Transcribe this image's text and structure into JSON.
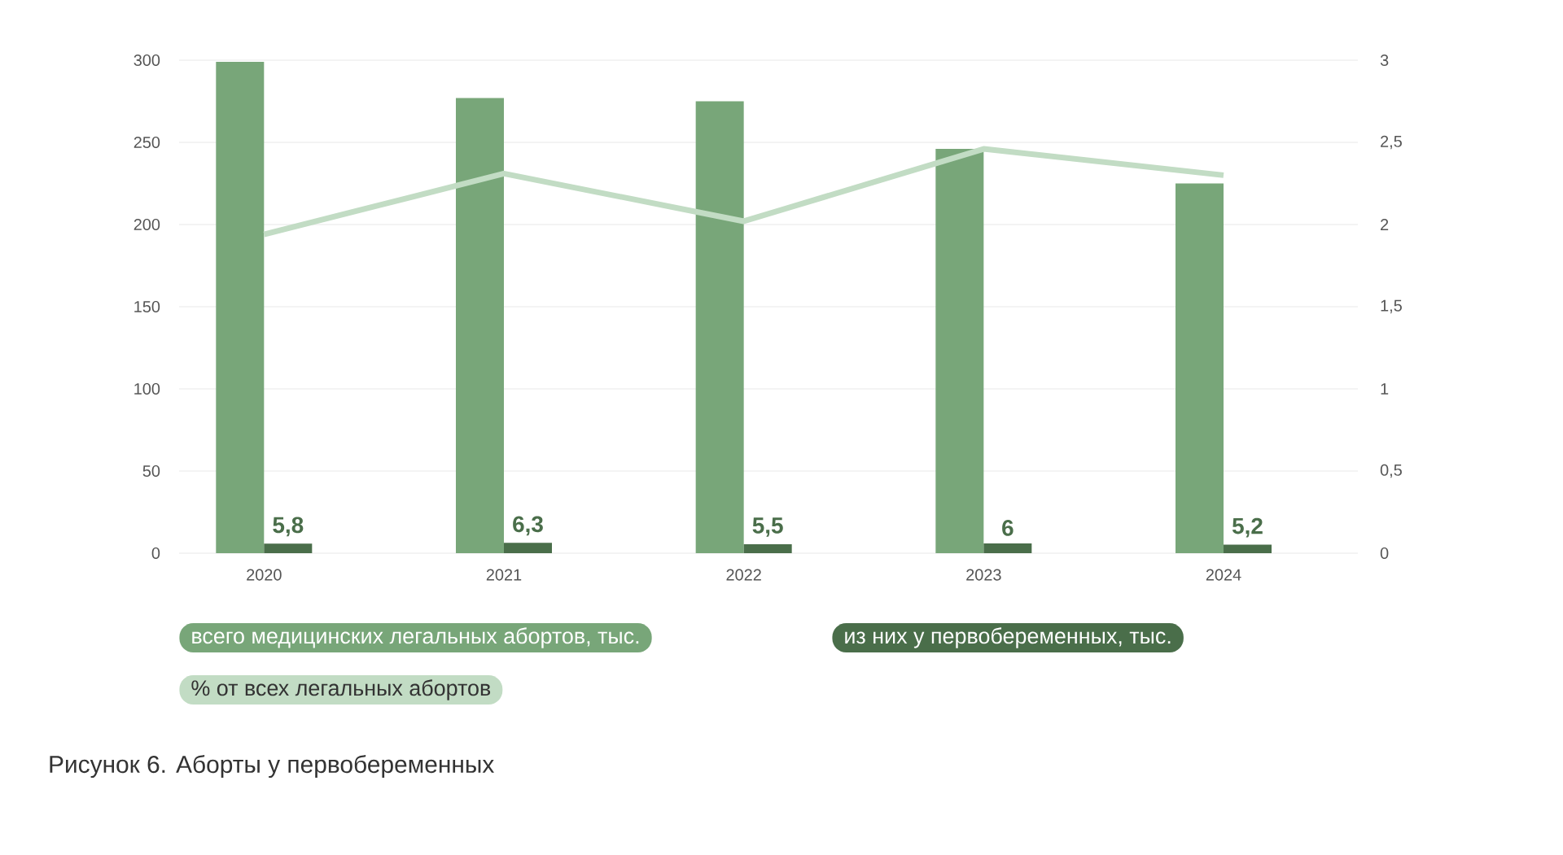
{
  "chart_data": {
    "type": "bar",
    "title": "Рисунок 6. Аборты у первобеременных",
    "categories": [
      "2020",
      "2021",
      "2022",
      "2023",
      "2024"
    ],
    "series": [
      {
        "name": "всего медицинских легальных абортов, тыс.",
        "color": "#78a679",
        "values": [
          299,
          277,
          275,
          246,
          225
        ]
      },
      {
        "name": "из них у первобеременных, тыс.",
        "color": "#4a6e4a",
        "values": [
          5.8,
          6.3,
          5.5,
          6,
          5.2
        ],
        "value_labels": [
          "5,8",
          "6,3",
          "5,5",
          "6",
          "5,2"
        ]
      },
      {
        "name": "% от всех легальных абортов",
        "type": "line",
        "axis": "y2",
        "color": "#c2dcc4",
        "values": [
          1.94,
          2.31,
          2.02,
          2.46,
          2.3
        ]
      }
    ],
    "ylim": [
      0,
      300
    ],
    "yticks": [
      0,
      50,
      100,
      150,
      200,
      250,
      300
    ],
    "y2lim": [
      0,
      3
    ],
    "y2ticks": [
      0,
      {
        "value": 0.5,
        "label": "0,5"
      },
      1,
      {
        "value": 1.5,
        "label": "1,5"
      },
      2,
      {
        "value": 2.5,
        "label": "2,5"
      },
      3
    ],
    "grid": "y",
    "legend": "bottom"
  }
}
